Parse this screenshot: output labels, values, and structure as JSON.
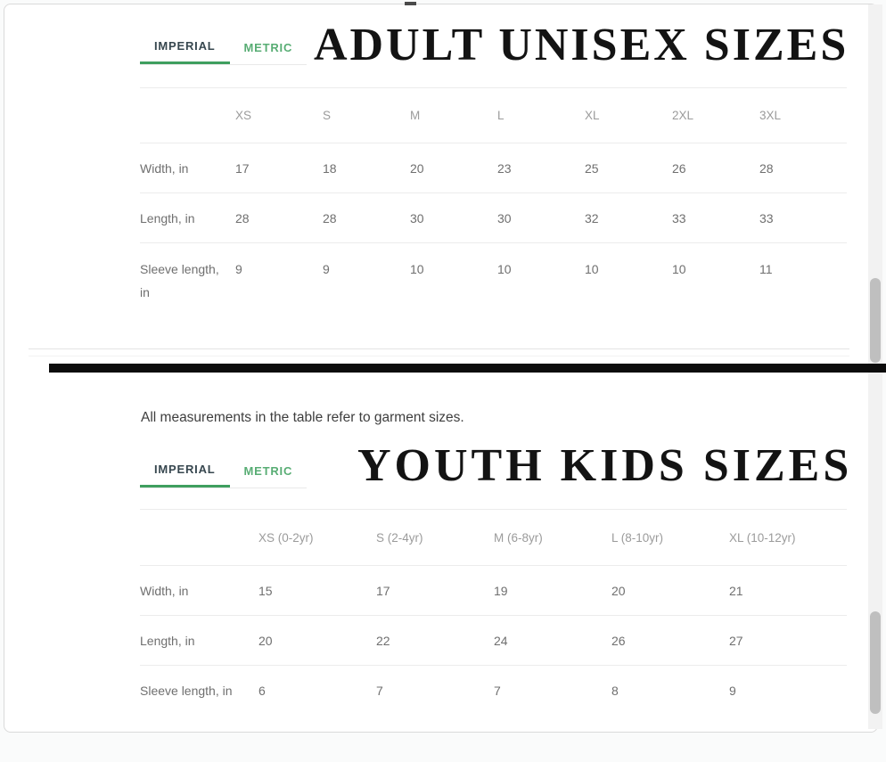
{
  "colors": {
    "accent_green": "#58ad74",
    "tab_underline_green": "#3f9f5f",
    "active_tab_text": "#37474f",
    "divider_black": "#0c0c0c",
    "header_text": "#9b9b9b",
    "table_text": "#6f6f6f",
    "scrollbar_thumb": "#bfbfbf",
    "scrollbar_track": "#f2f2f2"
  },
  "tabs": {
    "imperial_label": "IMPERIAL",
    "metric_label": "METRIC"
  },
  "note_text": "All measurements in the table refer to garment sizes.",
  "adult_section": {
    "title": "ADULT UNISEX SIZES",
    "columns": [
      "XS",
      "S",
      "M",
      "L",
      "XL",
      "2XL",
      "3XL"
    ],
    "rows": [
      {
        "label": "Width, in",
        "values": [
          "17",
          "18",
          "20",
          "23",
          "25",
          "26",
          "28"
        ]
      },
      {
        "label": "Length, in",
        "values": [
          "28",
          "28",
          "30",
          "30",
          "32",
          "33",
          "33"
        ]
      },
      {
        "label": "Sleeve length, in",
        "values": [
          "9",
          "9",
          "10",
          "10",
          "10",
          "10",
          "11"
        ]
      }
    ]
  },
  "youth_section": {
    "title": "YOUTH KIDS SIZES",
    "columns": [
      "XS (0-2yr)",
      "S (2-4yr)",
      "M (6-8yr)",
      "L (8-10yr)",
      "XL (10-12yr)"
    ],
    "rows": [
      {
        "label": "Width, in",
        "values": [
          "15",
          "17",
          "19",
          "20",
          "21"
        ]
      },
      {
        "label": "Length, in",
        "values": [
          "20",
          "22",
          "24",
          "26",
          "27"
        ]
      },
      {
        "label": "Sleeve length, in",
        "values": [
          "6",
          "7",
          "7",
          "8",
          "9"
        ]
      }
    ]
  }
}
